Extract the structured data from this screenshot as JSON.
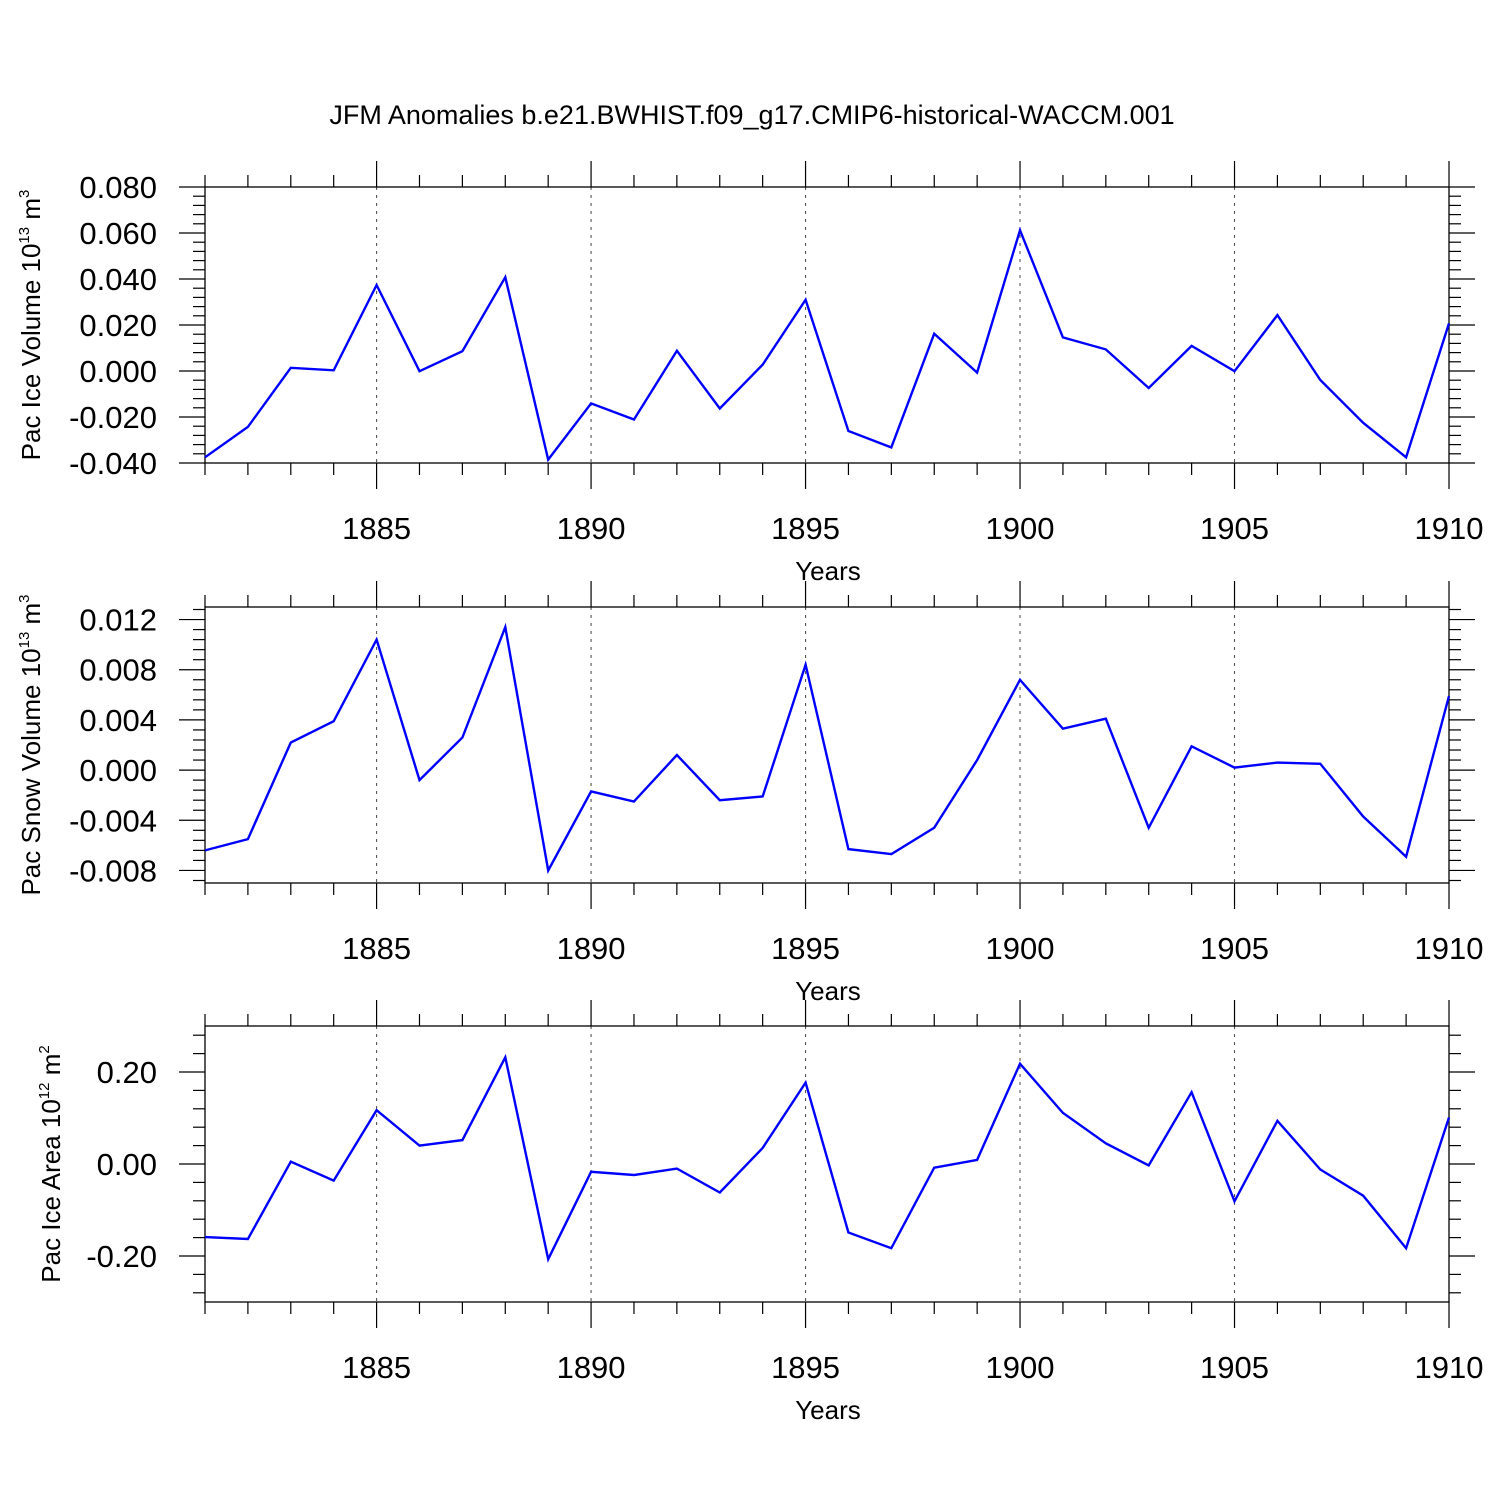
{
  "title": "JFM Anomalies b.e21.BWHIST.f09_g17.CMIP6-historical-WACCM.001",
  "colors": {
    "line": "#0000ff",
    "axis": "#000000"
  },
  "chart_data": [
    {
      "type": "line",
      "ylabel": {
        "base": "Pac Ice Volume 10",
        "exp": "13",
        "unit": " m",
        "unit_exp": "3"
      },
      "xlabel": "Years",
      "xlim": [
        1881,
        1910
      ],
      "ylim": [
        -0.04,
        0.08
      ],
      "yticks": [
        -0.04,
        -0.02,
        0.0,
        0.02,
        0.04,
        0.06,
        0.08
      ],
      "ytick_labels": [
        "-0.040",
        "-0.020",
        "0.000",
        "0.020",
        "0.040",
        "0.060",
        "0.080"
      ],
      "xticks": [
        1885,
        1890,
        1895,
        1900,
        1905,
        1910
      ],
      "xtick_labels": [
        "1885",
        "1890",
        "1895",
        "1900",
        "1905",
        "1910"
      ],
      "grid": "x major dashed",
      "x": [
        1881,
        1882,
        1883,
        1884,
        1885,
        1886,
        1887,
        1888,
        1889,
        1890,
        1891,
        1892,
        1893,
        1894,
        1895,
        1896,
        1897,
        1898,
        1899,
        1900,
        1901,
        1902,
        1903,
        1904,
        1905,
        1906,
        1907,
        1908,
        1909,
        1910
      ],
      "values": [
        -0.0375,
        -0.0243,
        0.0014,
        0.0003,
        0.0374,
        -0.0001,
        0.0086,
        0.0408,
        -0.0385,
        -0.0141,
        -0.0211,
        0.0088,
        -0.0163,
        0.0028,
        0.031,
        -0.0261,
        -0.0332,
        0.0162,
        -0.0007,
        0.0612,
        0.0146,
        0.0094,
        -0.0074,
        0.0109,
        -0.0001,
        0.0243,
        -0.0039,
        -0.0225,
        -0.0375,
        0.0207
      ]
    },
    {
      "type": "line",
      "ylabel": {
        "base": "Pac Snow Volume 10",
        "exp": "13",
        "unit": " m",
        "unit_exp": "3"
      },
      "xlabel": "Years",
      "xlim": [
        1881,
        1910
      ],
      "ylim": [
        -0.009,
        0.013
      ],
      "yticks": [
        -0.008,
        -0.004,
        0.0,
        0.004,
        0.008,
        0.012
      ],
      "ytick_labels": [
        "-0.008",
        "-0.004",
        "0.000",
        "0.004",
        "0.008",
        "0.012"
      ],
      "xticks": [
        1885,
        1890,
        1895,
        1900,
        1905,
        1910
      ],
      "xtick_labels": [
        "1885",
        "1890",
        "1895",
        "1900",
        "1905",
        "1910"
      ],
      "grid": "x major dashed",
      "x": [
        1881,
        1882,
        1883,
        1884,
        1885,
        1886,
        1887,
        1888,
        1889,
        1890,
        1891,
        1892,
        1893,
        1894,
        1895,
        1896,
        1897,
        1898,
        1899,
        1900,
        1901,
        1902,
        1903,
        1904,
        1905,
        1906,
        1907,
        1908,
        1909,
        1910
      ],
      "values": [
        -0.0064,
        -0.0055,
        0.0022,
        0.0039,
        0.0104,
        -0.0008,
        0.0026,
        0.0114,
        -0.008,
        -0.0017,
        -0.0025,
        0.0012,
        -0.0024,
        -0.0021,
        0.0084,
        -0.0063,
        -0.0067,
        -0.0046,
        0.0008,
        0.0072,
        0.0033,
        0.0041,
        -0.0046,
        0.0019,
        0.0002,
        0.0006,
        0.0005,
        -0.0037,
        -0.0069,
        0.0059
      ]
    },
    {
      "type": "line",
      "ylabel": {
        "base": "Pac Ice Area 10",
        "exp": "12",
        "unit": " m",
        "unit_exp": "2"
      },
      "xlabel": "Years",
      "xlim": [
        1881,
        1910
      ],
      "ylim": [
        -0.3,
        0.3
      ],
      "yticks": [
        -0.2,
        0.0,
        0.2
      ],
      "ytick_labels": [
        "-0.20",
        "0.00",
        "0.20"
      ],
      "xticks": [
        1885,
        1890,
        1895,
        1900,
        1905,
        1910
      ],
      "xtick_labels": [
        "1885",
        "1890",
        "1895",
        "1900",
        "1905",
        "1910"
      ],
      "grid": "x major dashed",
      "x": [
        1881,
        1882,
        1883,
        1884,
        1885,
        1886,
        1887,
        1888,
        1889,
        1890,
        1891,
        1892,
        1893,
        1894,
        1895,
        1896,
        1897,
        1898,
        1899,
        1900,
        1901,
        1902,
        1903,
        1904,
        1905,
        1906,
        1907,
        1908,
        1909,
        1910
      ],
      "values": [
        -0.159,
        -0.163,
        0.005,
        -0.036,
        0.117,
        0.04,
        0.052,
        0.232,
        -0.207,
        -0.017,
        -0.024,
        -0.01,
        -0.062,
        0.035,
        0.177,
        -0.149,
        -0.183,
        -0.008,
        0.009,
        0.218,
        0.111,
        0.045,
        -0.003,
        0.156,
        -0.081,
        0.094,
        -0.012,
        -0.069,
        -0.183,
        0.101
      ]
    }
  ]
}
